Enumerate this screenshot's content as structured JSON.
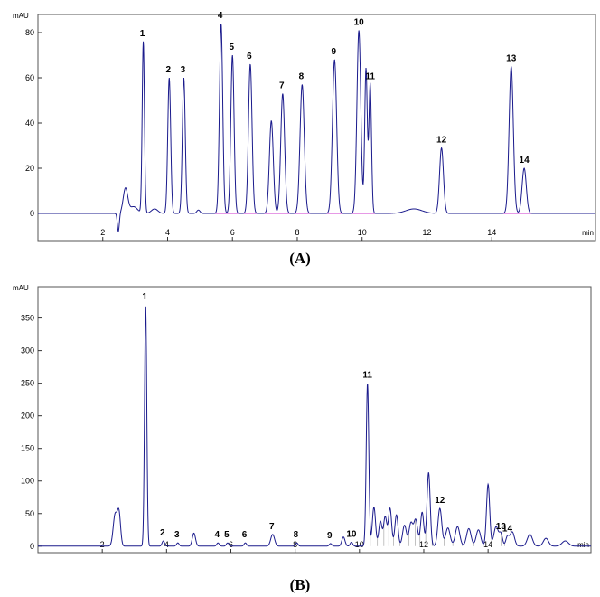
{
  "chart_data": [
    {
      "type": "line",
      "panel_label": "(A)",
      "ylabel": "mAU",
      "xlabel": "min",
      "xlim": [
        0,
        17.2
      ],
      "ylim": [
        -12,
        88
      ],
      "x_ticks": [
        2,
        4,
        6,
        8,
        10,
        12,
        14
      ],
      "y_ticks": [
        0,
        20,
        40,
        60,
        80
      ],
      "baseline_color": "#cc33cc",
      "trace_color": "#1a1a8c",
      "baseline_segments": [
        [
          5.4,
          10.9
        ],
        [
          13.9,
          15.4
        ]
      ],
      "features": [
        {
          "t": 2.48,
          "h": -8,
          "w": 0.03
        },
        {
          "t": 2.7,
          "h": 11,
          "w": 0.07
        },
        {
          "t": 2.95,
          "h": 3,
          "w": 0.12
        },
        {
          "t": 3.6,
          "h": 2,
          "w": 0.1
        },
        {
          "t": 4.95,
          "h": 1.5,
          "w": 0.05
        },
        {
          "t": 11.6,
          "h": 2,
          "w": 0.25
        }
      ],
      "peaks": [
        {
          "label": "1",
          "t": 3.25,
          "h": 76,
          "w": 0.035
        },
        {
          "label": "2",
          "t": 4.05,
          "h": 60,
          "w": 0.045
        },
        {
          "label": "3",
          "t": 4.5,
          "h": 60,
          "w": 0.045
        },
        {
          "label": "4",
          "t": 5.65,
          "h": 84,
          "w": 0.05
        },
        {
          "label": "5",
          "t": 6.0,
          "h": 70,
          "w": 0.05
        },
        {
          "label": "6",
          "t": 6.55,
          "h": 66,
          "w": 0.055
        },
        {
          "label": "",
          "t": 7.2,
          "h": 41,
          "w": 0.06
        },
        {
          "label": "7",
          "t": 7.55,
          "h": 53,
          "w": 0.06
        },
        {
          "label": "8",
          "t": 8.15,
          "h": 57,
          "w": 0.065
        },
        {
          "label": "9",
          "t": 9.15,
          "h": 68,
          "w": 0.065
        },
        {
          "label": "10",
          "t": 9.9,
          "h": 81,
          "w": 0.06
        },
        {
          "label": "",
          "t": 10.12,
          "h": 64,
          "w": 0.04
        },
        {
          "label": "11",
          "t": 10.25,
          "h": 57,
          "w": 0.04
        },
        {
          "label": "12",
          "t": 12.45,
          "h": 29,
          "w": 0.06
        },
        {
          "label": "13",
          "t": 14.6,
          "h": 65,
          "w": 0.065
        },
        {
          "label": "14",
          "t": 15.0,
          "h": 20,
          "w": 0.065
        }
      ]
    },
    {
      "type": "line",
      "panel_label": "(B)",
      "ylabel": "mAU",
      "xlabel": "min",
      "xlim": [
        0,
        17.2
      ],
      "ylim": [
        -10,
        398
      ],
      "x_ticks": [
        2,
        4,
        6,
        8,
        10,
        12,
        14
      ],
      "y_ticks": [
        0,
        50,
        100,
        150,
        200,
        250,
        300,
        350
      ],
      "trace_color": "#1a1a8c",
      "drop_line_color": "#9a9a9a",
      "features": [
        {
          "t": 2.4,
          "h": 48,
          "w": 0.06
        },
        {
          "t": 2.52,
          "h": 50,
          "w": 0.05
        },
        {
          "t": 4.85,
          "h": 20,
          "w": 0.05
        },
        {
          "t": 9.5,
          "h": 14,
          "w": 0.05
        },
        {
          "t": 10.45,
          "h": 60,
          "w": 0.05
        },
        {
          "t": 10.65,
          "h": 38,
          "w": 0.05
        },
        {
          "t": 10.8,
          "h": 45,
          "w": 0.05
        },
        {
          "t": 10.95,
          "h": 58,
          "w": 0.05
        },
        {
          "t": 11.15,
          "h": 48,
          "w": 0.05
        },
        {
          "t": 11.4,
          "h": 32,
          "w": 0.06
        },
        {
          "t": 11.6,
          "h": 35,
          "w": 0.06
        },
        {
          "t": 11.75,
          "h": 40,
          "w": 0.06
        },
        {
          "t": 11.95,
          "h": 52,
          "w": 0.05
        },
        {
          "t": 12.75,
          "h": 28,
          "w": 0.07
        },
        {
          "t": 13.05,
          "h": 30,
          "w": 0.07
        },
        {
          "t": 13.4,
          "h": 27,
          "w": 0.07
        },
        {
          "t": 13.7,
          "h": 25,
          "w": 0.07
        },
        {
          "t": 14.25,
          "h": 30,
          "w": 0.07
        },
        {
          "t": 14.75,
          "h": 22,
          "w": 0.07
        },
        {
          "t": 15.3,
          "h": 18,
          "w": 0.08
        },
        {
          "t": 15.8,
          "h": 12,
          "w": 0.08
        },
        {
          "t": 16.4,
          "h": 8,
          "w": 0.1
        }
      ],
      "peaks": [
        {
          "label": "1",
          "t": 3.35,
          "h": 370,
          "w": 0.035
        },
        {
          "label": "2",
          "t": 3.9,
          "h": 8,
          "w": 0.04
        },
        {
          "label": "3",
          "t": 4.35,
          "h": 5,
          "w": 0.04
        },
        {
          "label": "4",
          "t": 5.6,
          "h": 5,
          "w": 0.04
        },
        {
          "label": "5",
          "t": 5.9,
          "h": 5,
          "w": 0.04
        },
        {
          "label": "6",
          "t": 6.45,
          "h": 5,
          "w": 0.04
        },
        {
          "label": "7",
          "t": 7.3,
          "h": 18,
          "w": 0.06
        },
        {
          "label": "8",
          "t": 8.05,
          "h": 5,
          "w": 0.04
        },
        {
          "label": "9",
          "t": 9.1,
          "h": 4,
          "w": 0.04
        },
        {
          "label": "10",
          "t": 9.75,
          "h": 6,
          "w": 0.04
        },
        {
          "label": "11",
          "t": 10.25,
          "h": 250,
          "w": 0.04
        },
        {
          "label": "12",
          "t": 12.5,
          "h": 58,
          "w": 0.06
        },
        {
          "label": "",
          "t": 12.15,
          "h": 113,
          "w": 0.05
        },
        {
          "label": "",
          "t": 14.0,
          "h": 95,
          "w": 0.05
        },
        {
          "label": "13",
          "t": 14.4,
          "h": 18,
          "w": 0.05
        },
        {
          "label": "14",
          "t": 14.6,
          "h": 14,
          "w": 0.05
        }
      ]
    }
  ]
}
